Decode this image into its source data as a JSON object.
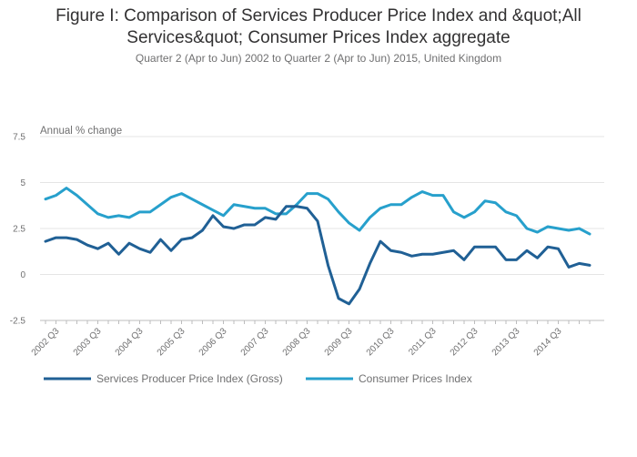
{
  "title": "Figure I: Comparison of Services Producer Price Index and &quot;All Services&quot; Consumer Prices Index aggregate",
  "subtitle": "Quarter 2 (Apr to Jun) 2002 to Quarter 2 (Apr to Jun) 2015, United Kingdom",
  "chart_data": {
    "type": "line",
    "title": "Figure I: Comparison of Services Producer Price Index and &quot;All Services&quot; Consumer Prices Index aggregate",
    "subtitle": "Quarter 2 (Apr to Jun) 2002 to Quarter 2 (Apr to Jun) 2015, United Kingdom",
    "ylabel": "Annual % change",
    "xlabel": "",
    "ylim": [
      -2.5,
      7.5
    ],
    "yticks": [
      -2.5,
      0,
      2.5,
      5,
      7.5
    ],
    "ytick_labels": [
      "-2.5",
      "0",
      "2.5",
      "5",
      "7.5"
    ],
    "grid": true,
    "legend_position": "bottom-left",
    "x_tick_labels": [
      "2002 Q3",
      "2003 Q3",
      "2004 Q3",
      "2005 Q3",
      "2006 Q3",
      "2007 Q3",
      "2008 Q3",
      "2009 Q3",
      "2010 Q3",
      "2011 Q3",
      "2012 Q3",
      "2013 Q3",
      "2014 Q3"
    ],
    "x": [
      "2002 Q2",
      "2002 Q3",
      "2002 Q4",
      "2003 Q1",
      "2003 Q2",
      "2003 Q3",
      "2003 Q4",
      "2004 Q1",
      "2004 Q2",
      "2004 Q3",
      "2004 Q4",
      "2005 Q1",
      "2005 Q2",
      "2005 Q3",
      "2005 Q4",
      "2006 Q1",
      "2006 Q2",
      "2006 Q3",
      "2006 Q4",
      "2007 Q1",
      "2007 Q2",
      "2007 Q3",
      "2007 Q4",
      "2008 Q1",
      "2008 Q2",
      "2008 Q3",
      "2008 Q4",
      "2009 Q1",
      "2009 Q2",
      "2009 Q3",
      "2009 Q4",
      "2010 Q1",
      "2010 Q2",
      "2010 Q3",
      "2010 Q4",
      "2011 Q1",
      "2011 Q2",
      "2011 Q3",
      "2011 Q4",
      "2012 Q1",
      "2012 Q2",
      "2012 Q3",
      "2012 Q4",
      "2013 Q1",
      "2013 Q2",
      "2013 Q3",
      "2013 Q4",
      "2014 Q1",
      "2014 Q2",
      "2014 Q3",
      "2014 Q4",
      "2015 Q1",
      "2015 Q2"
    ],
    "series": [
      {
        "name": "Services Producer Price Index (Gross)",
        "color": "#206095",
        "values": [
          1.8,
          2.0,
          2.0,
          1.9,
          1.6,
          1.4,
          1.7,
          1.1,
          1.7,
          1.4,
          1.2,
          1.9,
          1.3,
          1.9,
          2.0,
          2.4,
          3.2,
          2.6,
          2.5,
          2.7,
          2.7,
          3.1,
          3.0,
          3.7,
          3.7,
          3.6,
          2.9,
          0.5,
          -1.3,
          -1.6,
          -0.8,
          0.6,
          1.8,
          1.3,
          1.2,
          1.0,
          1.1,
          1.1,
          1.2,
          1.3,
          0.8,
          1.5,
          1.5,
          1.5,
          0.8,
          0.8,
          1.3,
          0.9,
          1.5,
          1.4,
          0.4,
          0.6,
          0.5
        ]
      },
      {
        "name": "Consumer Prices Index",
        "color": "#27A0CC",
        "values": [
          4.1,
          4.3,
          4.7,
          4.3,
          3.8,
          3.3,
          3.1,
          3.2,
          3.1,
          3.4,
          3.4,
          3.8,
          4.2,
          4.4,
          4.1,
          3.8,
          3.5,
          3.2,
          3.8,
          3.7,
          3.6,
          3.6,
          3.3,
          3.3,
          3.8,
          4.4,
          4.4,
          4.1,
          3.4,
          2.8,
          2.4,
          3.1,
          3.6,
          3.8,
          3.8,
          4.2,
          4.5,
          4.3,
          4.3,
          3.4,
          3.1,
          3.4,
          4.0,
          3.9,
          3.4,
          3.2,
          2.5,
          2.3,
          2.6,
          2.5,
          2.4,
          2.5,
          2.2
        ]
      }
    ]
  }
}
